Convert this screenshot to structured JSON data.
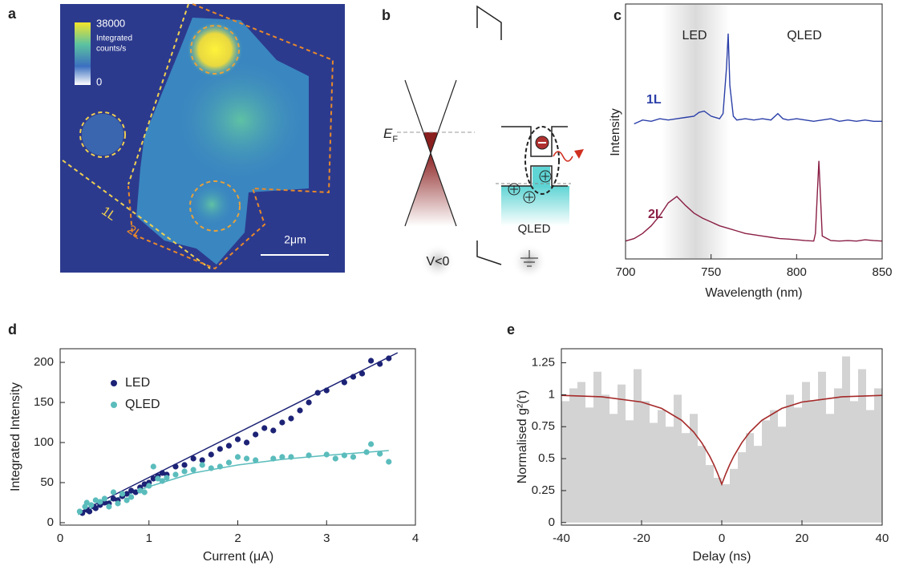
{
  "panels": {
    "a": {
      "panel_label": "a",
      "colorbar_max": 38000,
      "colorbar_min": 0,
      "colorbar_label": [
        "Integrated",
        "counts/s"
      ],
      "region_labels": [
        "1L",
        "2L"
      ],
      "scale_bar": "2μm"
    },
    "b": {
      "panel_label": "b",
      "fermi": {
        "main": "E",
        "sub": "F"
      },
      "device_label": "QLED",
      "bias_label": "V<0"
    }
  },
  "chart_data": [
    {
      "type": "line",
      "panel_label": "c",
      "xlabel": "Wavelength (nm)",
      "ylabel": "Intensity",
      "xlim": [
        700,
        850
      ],
      "xticks": [
        700,
        750,
        800,
        850
      ],
      "ylim": [
        0,
        10
      ],
      "annotations": [
        "LED",
        "QLED"
      ],
      "series": [
        {
          "name": "1L",
          "color": "#2b3fa8",
          "x": [
            705,
            710,
            715,
            720,
            725,
            730,
            735,
            740,
            743,
            746,
            750,
            755,
            757,
            759,
            760,
            761,
            763,
            765,
            770,
            775,
            780,
            785,
            789,
            792,
            795,
            800,
            805,
            810,
            815,
            820,
            825,
            830,
            835,
            840,
            845,
            850
          ],
          "values": [
            5.3,
            5.45,
            5.4,
            5.5,
            5.45,
            5.5,
            5.55,
            5.6,
            5.75,
            5.8,
            5.6,
            5.5,
            5.7,
            7.5,
            8.84,
            6.8,
            5.6,
            5.45,
            5.5,
            5.45,
            5.5,
            5.45,
            5.7,
            5.5,
            5.45,
            5.5,
            5.45,
            5.4,
            5.45,
            5.5,
            5.4,
            5.45,
            5.4,
            5.45,
            5.4,
            5.4
          ]
        },
        {
          "name": "2L",
          "color": "#8a1f45",
          "x": [
            700,
            705,
            710,
            715,
            720,
            725,
            730,
            735,
            740,
            745,
            750,
            755,
            760,
            765,
            770,
            775,
            780,
            785,
            790,
            795,
            800,
            805,
            810,
            811,
            813,
            815,
            820,
            825,
            830,
            835,
            840,
            845,
            850
          ],
          "values": [
            0.7,
            0.8,
            1.0,
            1.3,
            1.7,
            2.2,
            2.45,
            2.1,
            1.8,
            1.6,
            1.45,
            1.3,
            1.2,
            1.1,
            1.0,
            0.95,
            0.9,
            0.85,
            0.8,
            0.78,
            0.75,
            0.72,
            0.7,
            1.0,
            3.85,
            0.9,
            0.72,
            0.7,
            0.72,
            0.7,
            0.75,
            0.72,
            0.7
          ]
        }
      ]
    },
    {
      "type": "scatter",
      "panel_label": "d",
      "xlabel": "Current (μA)",
      "ylabel": "Integrated Intensity",
      "xlim": [
        0,
        4
      ],
      "xticks": [
        0,
        1,
        2,
        3,
        4
      ],
      "ylim": [
        -3,
        217
      ],
      "yticks": [
        0,
        50,
        100,
        150,
        200
      ],
      "series": [
        {
          "name": "LED",
          "color": "#1c2275",
          "x": [
            0.25,
            0.3,
            0.33,
            0.38,
            0.4,
            0.45,
            0.5,
            0.55,
            0.6,
            0.65,
            0.7,
            0.75,
            0.8,
            0.85,
            0.9,
            0.95,
            1.0,
            1.05,
            1.1,
            1.15,
            1.2,
            1.3,
            1.4,
            1.5,
            1.6,
            1.7,
            1.8,
            1.9,
            2.0,
            2.1,
            2.2,
            2.3,
            2.4,
            2.5,
            2.6,
            2.7,
            2.8,
            2.9,
            3.0,
            3.2,
            3.3,
            3.4,
            3.5,
            3.6,
            3.7
          ],
          "values": [
            12,
            16,
            14,
            20,
            18,
            22,
            25,
            24,
            30,
            28,
            33,
            36,
            40,
            38,
            44,
            48,
            50,
            55,
            58,
            62,
            60,
            70,
            72,
            80,
            78,
            85,
            92,
            96,
            104,
            100,
            110,
            118,
            115,
            125,
            130,
            140,
            150,
            162,
            165,
            175,
            182,
            186,
            202,
            198,
            205
          ]
        },
        {
          "name": "QLED",
          "color": "#5bbcbc",
          "x": [
            0.22,
            0.28,
            0.3,
            0.35,
            0.4,
            0.45,
            0.5,
            0.55,
            0.6,
            0.65,
            0.7,
            0.75,
            0.8,
            0.9,
            0.95,
            1.0,
            1.05,
            1.1,
            1.15,
            1.2,
            1.3,
            1.4,
            1.5,
            1.6,
            1.7,
            1.8,
            1.9,
            2.0,
            2.1,
            2.2,
            2.4,
            2.5,
            2.6,
            2.8,
            3.0,
            3.1,
            3.2,
            3.3,
            3.45,
            3.5,
            3.6,
            3.7
          ],
          "values": [
            14,
            20,
            25,
            22,
            28,
            26,
            30,
            20,
            38,
            24,
            36,
            28,
            32,
            40,
            38,
            46,
            70,
            55,
            52,
            56,
            60,
            64,
            66,
            72,
            68,
            70,
            75,
            82,
            80,
            78,
            80,
            82,
            82,
            84,
            85,
            80,
            84,
            82,
            88,
            98,
            86,
            76
          ]
        }
      ],
      "fits": [
        {
          "color": "#1c2275",
          "x": [
            0.2,
            3.8
          ],
          "y": [
            12,
            212
          ]
        },
        {
          "color": "#5bbcbc",
          "x": [
            0.2,
            0.5,
            1.0,
            1.5,
            2.0,
            2.5,
            3.0,
            3.7
          ],
          "y": [
            10,
            25,
            45,
            62,
            72,
            79,
            84,
            90
          ]
        }
      ]
    },
    {
      "type": "histogram",
      "panel_label": "e",
      "xlabel": "Delay (ns)",
      "ylabel": "Normalised g²(τ)",
      "xlim": [
        -40,
        40
      ],
      "xticks": [
        -40,
        -20,
        0,
        20,
        40
      ],
      "ylim": [
        -0.02,
        1.36
      ],
      "yticks": [
        0,
        0.25,
        0.5,
        0.75,
        1,
        1.25
      ],
      "color": "#d3d3d3",
      "bins": [
        -40,
        -38,
        -36,
        -34,
        -32,
        -30,
        -28,
        -26,
        -24,
        -22,
        -20,
        -18,
        -16,
        -14,
        -12,
        -10,
        -8,
        -6,
        -4,
        -2,
        0,
        2,
        4,
        6,
        8,
        10,
        12,
        14,
        16,
        18,
        20,
        22,
        24,
        26,
        28,
        30,
        32,
        34,
        36,
        38,
        40
      ],
      "values": [
        0.95,
        1.05,
        1.1,
        0.9,
        1.18,
        1.0,
        0.85,
        1.08,
        0.8,
        1.2,
        0.95,
        0.78,
        0.88,
        0.75,
        1.0,
        0.7,
        0.85,
        0.6,
        0.45,
        0.35,
        0.3,
        0.42,
        0.55,
        0.7,
        0.6,
        0.8,
        0.88,
        0.75,
        1.0,
        0.9,
        1.1,
        0.95,
        1.18,
        0.85,
        1.05,
        1.3,
        0.95,
        1.2,
        0.88,
        1.05
      ],
      "fit": {
        "color": "#a52a2a",
        "x": [
          -40,
          -30,
          -20,
          -15,
          -10,
          -7,
          -5,
          -3,
          -2,
          -1,
          0,
          1,
          2,
          3,
          5,
          7,
          10,
          15,
          20,
          30,
          40
        ],
        "y": [
          0.995,
          0.984,
          0.943,
          0.893,
          0.8,
          0.708,
          0.625,
          0.519,
          0.455,
          0.382,
          0.3,
          0.382,
          0.455,
          0.519,
          0.625,
          0.708,
          0.8,
          0.893,
          0.943,
          0.984,
          0.995
        ]
      }
    }
  ]
}
